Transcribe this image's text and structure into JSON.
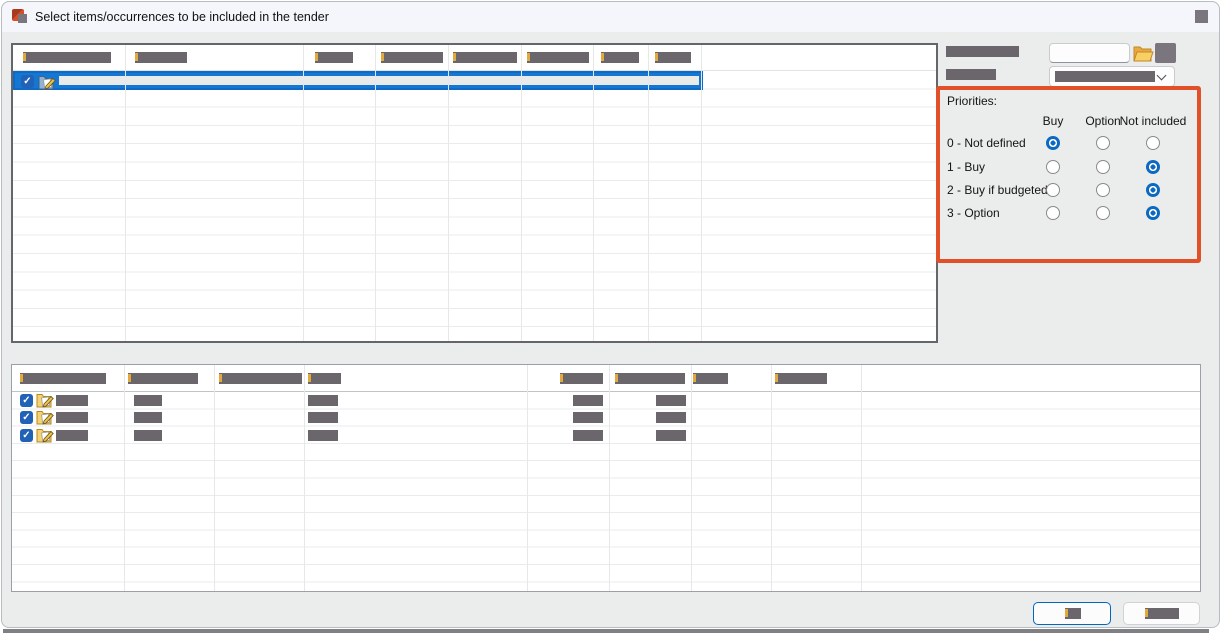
{
  "window": {
    "title": "Select items/occurrences to be included in the tender"
  },
  "titlebar": {
    "close_button": "redacted"
  },
  "right_panel": {
    "field1": {
      "label": "redacted",
      "input_value": "",
      "browse_icon": "folder",
      "extra_button": "redacted"
    },
    "field2": {
      "label": "redacted",
      "dropdown_selected_value": "redacted"
    }
  },
  "priorities": {
    "title": "Priorities:",
    "columns": [
      "Buy",
      "Option",
      "Not included"
    ],
    "rows": [
      {
        "label": "0 - Not defined",
        "selected": "Buy"
      },
      {
        "label": "1 - Buy",
        "selected": "Not included"
      },
      {
        "label": "2 - Buy if budgeted",
        "selected": "Not included"
      },
      {
        "label": "3 - Option",
        "selected": "Not included"
      }
    ]
  },
  "top_table": {
    "column_headers_redacted": 8,
    "rows": [
      {
        "checked": true,
        "selected": true,
        "content": "redacted",
        "icon": "folder-edit-blue"
      }
    ]
  },
  "bottom_table": {
    "column_headers_redacted": 8,
    "rows": [
      {
        "checked": true,
        "content": "redacted",
        "icon": "folder-edit-yellow"
      },
      {
        "checked": true,
        "content": "redacted",
        "icon": "folder-edit-yellow"
      },
      {
        "checked": true,
        "content": "redacted",
        "icon": "folder-edit-yellow"
      }
    ]
  },
  "footer": {
    "buttons": [
      {
        "label": "redacted",
        "default": true
      },
      {
        "label": "redacted",
        "default": false
      }
    ]
  },
  "icons": {
    "check": "✓"
  },
  "colors": {
    "selection_blue": "#1377d3",
    "checkbox_blue": "#2161b6",
    "radio_blue": "#0b69c1",
    "highlight_orange": "#e2502a",
    "button_accent_border": "#0067c0",
    "redaction_gray": "#6b666b",
    "titlebar_bg": "#f4f6fb",
    "dialog_bg": "#ebecec"
  }
}
